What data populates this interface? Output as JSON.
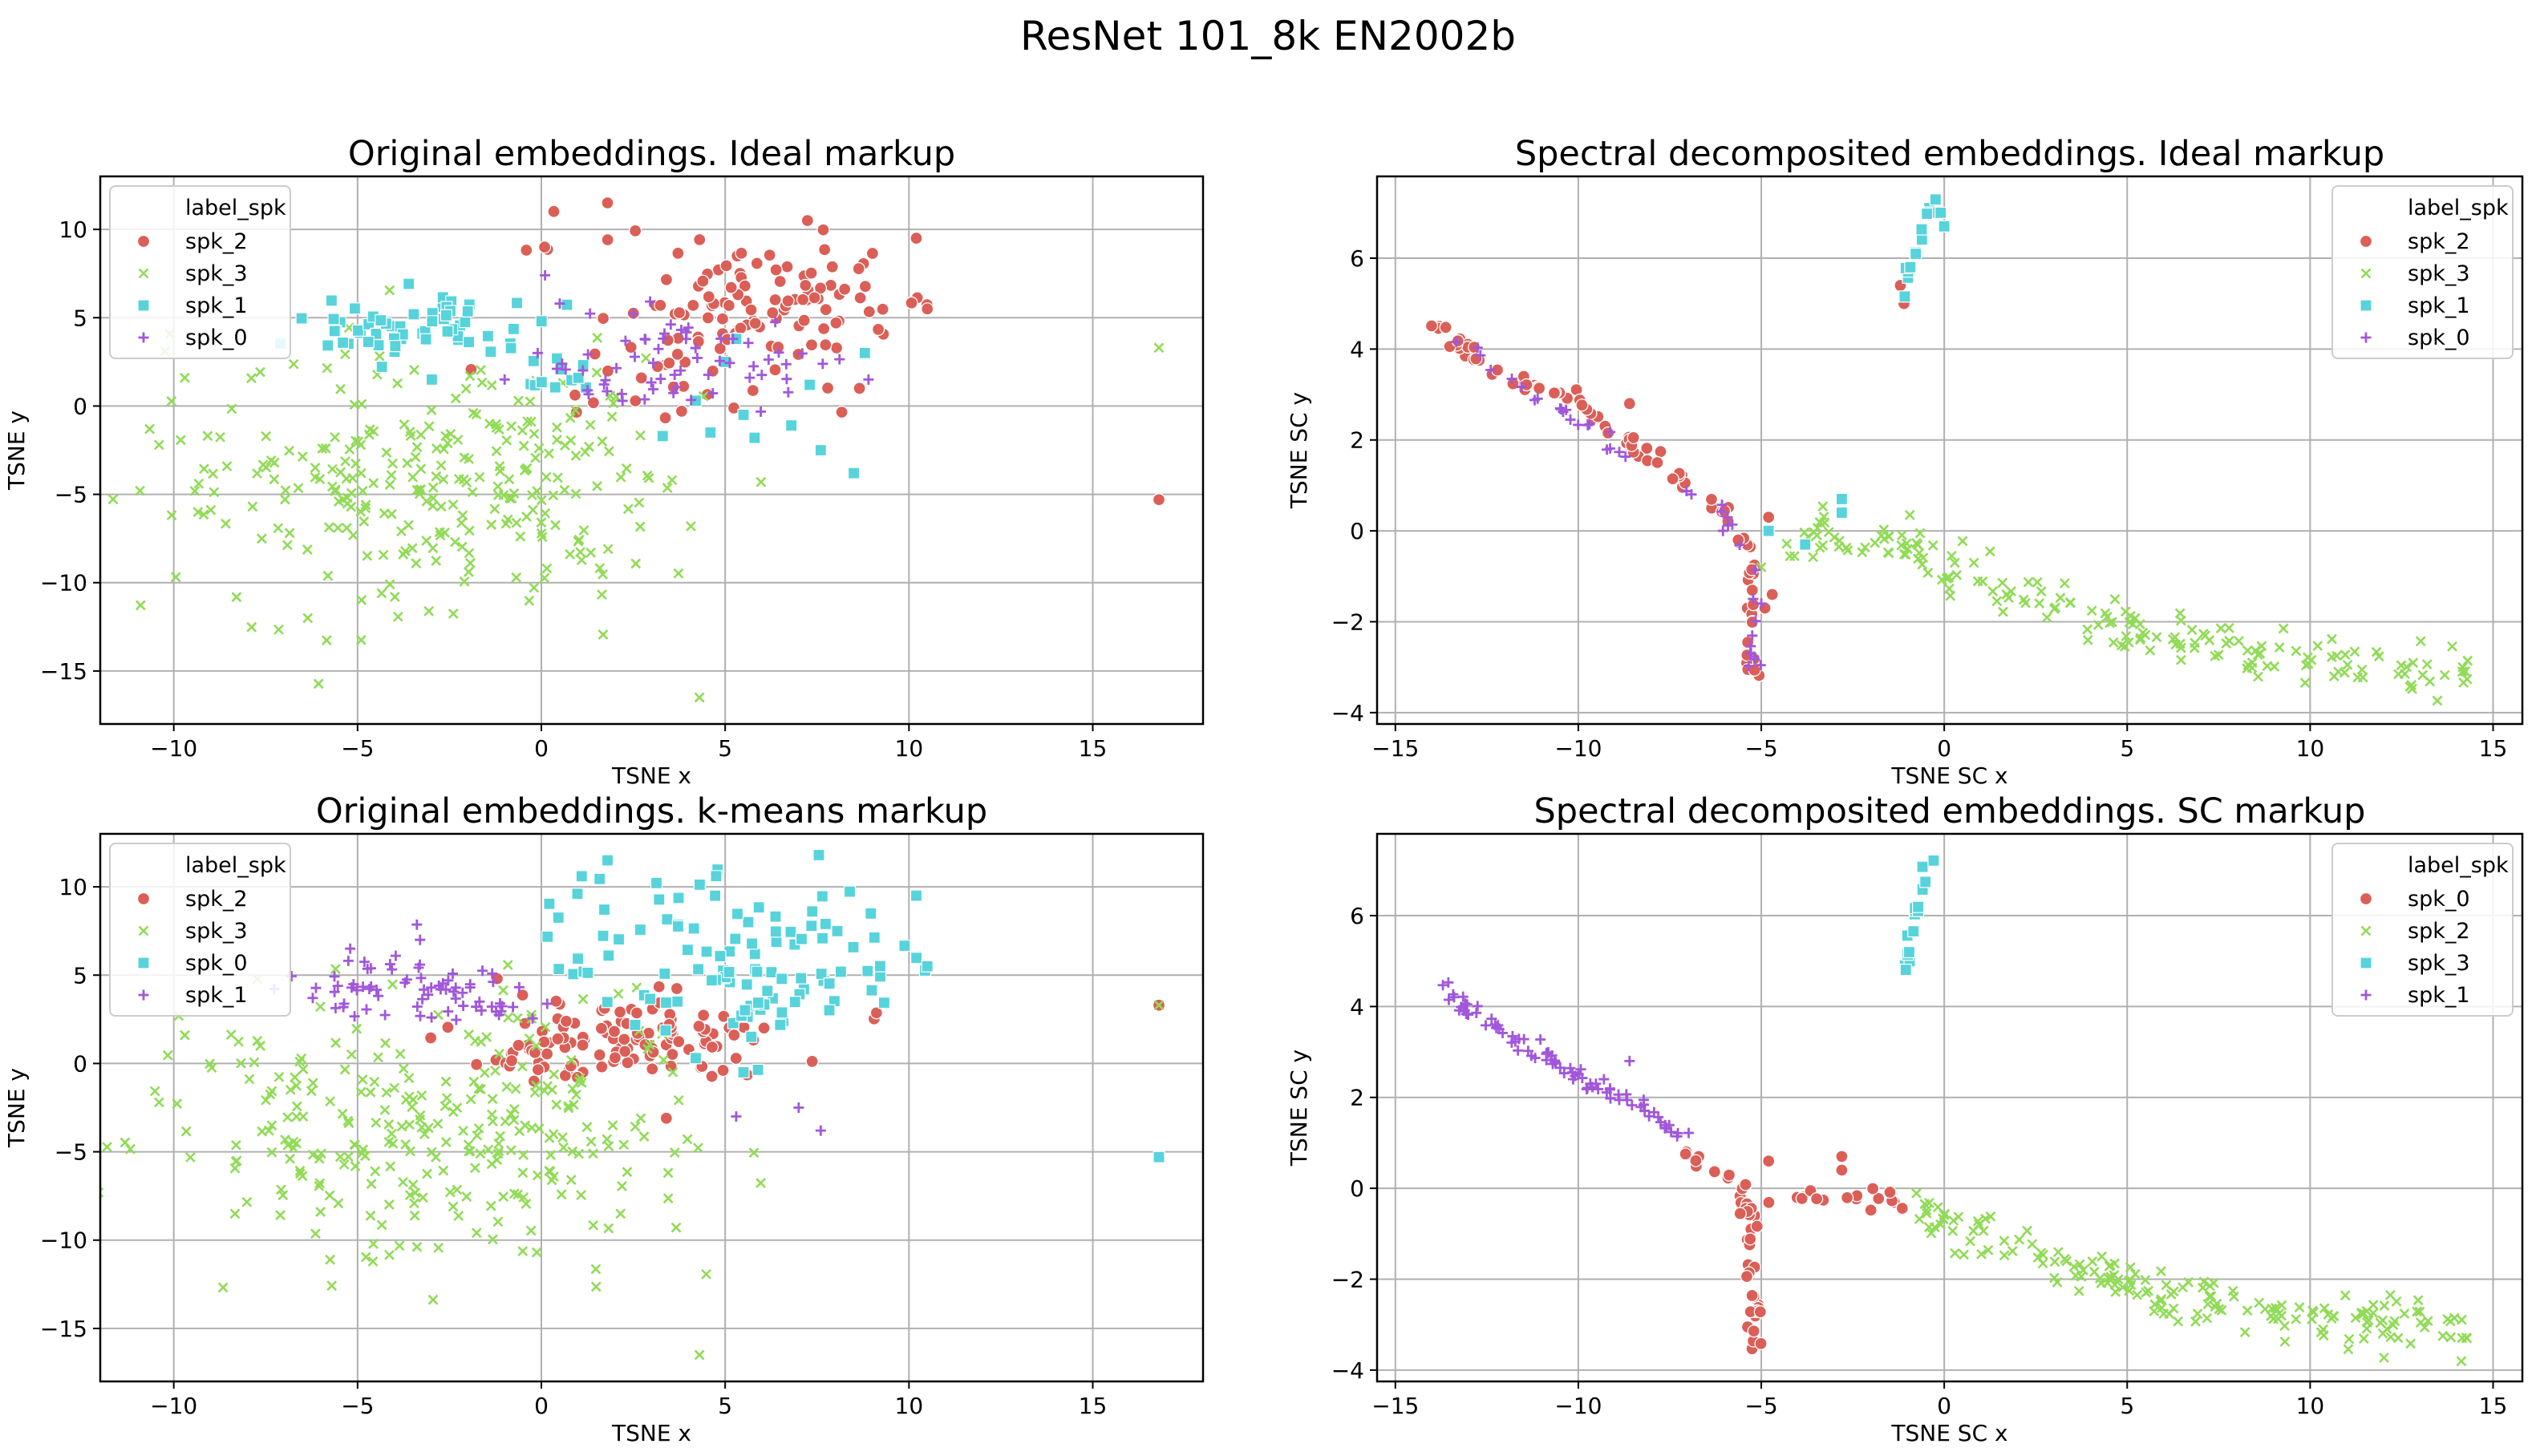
{
  "figure": {
    "title": "ResNet 101_8k EN2002b"
  },
  "colors": {
    "red": "#db5f57",
    "green": "#91db57",
    "cyan": "#57d3db",
    "purple": "#a157db"
  },
  "chart_data": [
    {
      "type": "scatter",
      "title": "Original embeddings. Ideal markup",
      "xlabel": "TSNE x",
      "ylabel": "TSNE y",
      "xlim": [
        -12,
        18
      ],
      "ylim": [
        -18,
        13
      ],
      "xticks": [
        -10,
        -5,
        0,
        5,
        10,
        15
      ],
      "xtick_labels": [
        "−10",
        "−5",
        "0",
        "5",
        "10",
        "15"
      ],
      "yticks": [
        -15,
        -10,
        -5,
        0,
        5,
        10
      ],
      "ytick_labels": [
        "−15",
        "−10",
        "−5",
        "0",
        "5",
        "10"
      ],
      "grid": true,
      "legend_position": "top-left",
      "legend_title": "label_spk",
      "series": [
        {
          "name": "spk_2",
          "marker": "circle",
          "color": "#db5f57",
          "clusters": [
            [
              5.8,
              5.4,
              2.2,
              2.0,
              120
            ],
            [
              0.2,
              9.0,
              0.6,
              0.2,
              3
            ],
            [
              2.6,
              1.0,
              1.5,
              0.8,
              10
            ]
          ],
          "points": [
            [
              1.8,
              11.5
            ],
            [
              10.2,
              9.5
            ],
            [
              10.5,
              5.5
            ],
            [
              16.8,
              -5.3
            ]
          ]
        },
        {
          "name": "spk_3",
          "marker": "x",
          "color": "#91db57",
          "clusters": [
            [
              -3.2,
              -4.2,
              3.4,
              3.6,
              260
            ],
            [
              1.2,
              -3.0,
              1.4,
              2.6,
              30
            ]
          ],
          "points": [
            [
              16.8,
              3.3
            ],
            [
              4.3,
              -16.5
            ],
            [
              -9.7,
              1.6
            ],
            [
              -10.4,
              -2.2
            ]
          ]
        },
        {
          "name": "spk_1",
          "marker": "square",
          "color": "#57d3db",
          "clusters": [
            [
              -3.5,
              4.2,
              1.6,
              1.1,
              65
            ],
            [
              0.6,
              1.5,
              0.6,
              0.6,
              10
            ]
          ],
          "points": [
            [
              4.2,
              0.3
            ],
            [
              5.5,
              -0.5
            ],
            [
              5.3,
              3.8
            ],
            [
              8.8,
              3.0
            ],
            [
              7.3,
              1.2
            ],
            [
              5.0,
              2.5
            ],
            [
              4.6,
              -1.5
            ],
            [
              5.8,
              -1.8
            ],
            [
              6.8,
              -1.1
            ],
            [
              7.6,
              -2.5
            ],
            [
              8.5,
              -3.8
            ],
            [
              3.3,
              -1.7
            ]
          ]
        },
        {
          "name": "spk_0",
          "marker": "plus",
          "color": "#a157db",
          "clusters": [
            [
              2.6,
              2.4,
              1.6,
              1.5,
              40
            ],
            [
              5.5,
              3.0,
              2.0,
              1.7,
              20
            ]
          ],
          "points": [
            [
              0.1,
              7.4
            ],
            [
              -0.1,
              3.0
            ],
            [
              -1.0,
              1.5
            ],
            [
              8.9,
              1.5
            ],
            [
              0.5,
              5.8
            ]
          ]
        }
      ]
    },
    {
      "type": "scatter",
      "title": "Spectral decomposited embeddings. Ideal markup",
      "xlabel": "TSNE SC x",
      "ylabel": "TSNE SC y",
      "xlim": [
        -15.5,
        15.8
      ],
      "ylim": [
        -4.25,
        7.8
      ],
      "xticks": [
        -15,
        -10,
        -5,
        0,
        5,
        10,
        15
      ],
      "xtick_labels": [
        "−15",
        "−10",
        "−5",
        "0",
        "5",
        "10",
        "15"
      ],
      "yticks": [
        -4,
        -2,
        0,
        2,
        4,
        6
      ],
      "ytick_labels": [
        "−4",
        "−2",
        "0",
        "2",
        "4",
        "6"
      ],
      "grid": true,
      "legend_position": "top-right",
      "legend_title": "label_spk",
      "series": [
        {
          "name": "spk_2",
          "marker": "circle",
          "color": "#db5f57",
          "paths": [
            [
              [
                -14.0,
                4.6
              ],
              [
                -12.0,
                3.4
              ],
              [
                -10.0,
                2.9
              ],
              [
                -8.0,
                1.6
              ],
              [
                -6.0,
                0.5
              ],
              [
                -5.3,
                -0.5
              ]
            ],
            [
              [
                -5.3,
                -0.5
              ],
              [
                -5.2,
                -3.3
              ]
            ]
          ],
          "path_counts": [
            75,
            18
          ],
          "jitter": 0.1,
          "points": [
            [
              -8.6,
              2.8
            ],
            [
              -4.8,
              0.3
            ],
            [
              -4.7,
              -1.4
            ],
            [
              -4.9,
              -1.7
            ],
            [
              -1.2,
              5.4
            ],
            [
              -1.1,
              5.0
            ]
          ]
        },
        {
          "name": "spk_3",
          "marker": "x",
          "color": "#91db57",
          "paths": [
            [
              [
                -4.5,
                -0.2
              ],
              [
                -2.5,
                -0.1
              ],
              [
                0.0,
                -0.7
              ],
              [
                5.0,
                -2.2
              ],
              [
                10.0,
                -2.8
              ],
              [
                14.5,
                -3.2
              ]
            ]
          ],
          "path_counts": [
            185
          ],
          "jitter": 0.28,
          "points": [
            [
              -5.0,
              -0.8
            ]
          ]
        },
        {
          "name": "spk_1",
          "marker": "square",
          "color": "#57d3db",
          "paths": [
            [
              [
                -0.3,
                7.3
              ],
              [
                -0.8,
                6.0
              ],
              [
                -1.1,
                4.8
              ]
            ]
          ],
          "path_counts": [
            14
          ],
          "jitter": 0.08,
          "points": [
            [
              -2.8,
              0.7
            ],
            [
              -2.8,
              0.4
            ],
            [
              -4.8,
              0.0
            ],
            [
              -3.8,
              -0.3
            ],
            [
              0.0,
              6.7
            ],
            [
              -0.1,
              7.0
            ]
          ]
        },
        {
          "name": "spk_0",
          "marker": "plus",
          "color": "#a157db",
          "paths": [
            [
              [
                -13.3,
                4.1
              ],
              [
                -9.0,
                1.9
              ],
              [
                -6.0,
                0.4
              ],
              [
                -5.3,
                -0.8
              ]
            ],
            [
              [
                -5.3,
                -0.8
              ],
              [
                -5.2,
                -3.0
              ]
            ]
          ],
          "path_counts": [
            30,
            10
          ],
          "jitter": 0.12,
          "points": [
            [
              -5.0,
              -1.6
            ],
            [
              -5.3,
              -2.7
            ]
          ]
        }
      ]
    },
    {
      "type": "scatter",
      "title": "Original embeddings. k-means markup",
      "xlabel": "TSNE x",
      "ylabel": "TSNE y",
      "xlim": [
        -12,
        18
      ],
      "ylim": [
        -18,
        13
      ],
      "xticks": [
        -10,
        -5,
        0,
        5,
        10,
        15
      ],
      "xtick_labels": [
        "−10",
        "−5",
        "0",
        "5",
        "10",
        "15"
      ],
      "yticks": [
        -15,
        -10,
        -5,
        0,
        5,
        10
      ],
      "ytick_labels": [
        "−15",
        "−10",
        "−5",
        "0",
        "5",
        "10"
      ],
      "grid": true,
      "legend_position": "top-left",
      "legend_title": "label_spk",
      "series": [
        {
          "name": "spk_2",
          "marker": "circle",
          "color": "#db5f57",
          "clusters": [
            [
              2.3,
              1.3,
              1.9,
              1.1,
              110
            ],
            [
              -0.6,
              0.2,
              0.5,
              0.4,
              10
            ]
          ],
          "points": [
            [
              -1.2,
              4.8
            ],
            [
              16.8,
              3.3
            ],
            [
              3.4,
              -3.1
            ],
            [
              -0.2,
              -1.0
            ]
          ]
        },
        {
          "name": "spk_3",
          "marker": "x",
          "color": "#91db57",
          "clusters": [
            [
              -3.2,
              -4.2,
              3.4,
              3.6,
              260
            ],
            [
              1.2,
              -3.0,
              1.4,
              2.6,
              30
            ]
          ],
          "points": [
            [
              16.8,
              3.3
            ],
            [
              4.3,
              -16.5
            ],
            [
              -9.7,
              1.6
            ],
            [
              -10.4,
              -2.2
            ]
          ]
        },
        {
          "name": "spk_0",
          "marker": "square",
          "color": "#57d3db",
          "clusters": [
            [
              6.0,
              6.0,
              2.2,
              2.2,
              95
            ],
            [
              2.0,
              7.3,
              1.0,
              2.2,
              15
            ]
          ],
          "points": [
            [
              1.8,
              11.5
            ],
            [
              10.2,
              9.5
            ],
            [
              10.5,
              5.5
            ],
            [
              16.8,
              -5.3
            ],
            [
              5.5,
              -0.5
            ],
            [
              4.2,
              0.3
            ]
          ]
        },
        {
          "name": "spk_1",
          "marker": "plus",
          "color": "#a157db",
          "clusters": [
            [
              -3.8,
              4.4,
              1.8,
              1.0,
              60
            ],
            [
              -1.0,
              3.0,
              0.8,
              0.6,
              12
            ]
          ],
          "points": [
            [
              -5.2,
              6.5
            ],
            [
              -3.3,
              7.0
            ],
            [
              5.3,
              -3.0
            ],
            [
              7.0,
              -2.5
            ],
            [
              7.6,
              -3.8
            ]
          ]
        }
      ]
    },
    {
      "type": "scatter",
      "title": "Spectral decomposited embeddings. SC markup",
      "xlabel": "TSNE SC x",
      "ylabel": "TSNE SC y",
      "xlim": [
        -15.5,
        15.8
      ],
      "ylim": [
        -4.25,
        7.8
      ],
      "xticks": [
        -15,
        -10,
        -5,
        0,
        5,
        10,
        15
      ],
      "xtick_labels": [
        "−15",
        "−10",
        "−5",
        "0",
        "5",
        "10",
        "15"
      ],
      "yticks": [
        -4,
        -2,
        0,
        2,
        4,
        6
      ],
      "ytick_labels": [
        "−4",
        "−2",
        "0",
        "2",
        "4",
        "6"
      ],
      "grid": true,
      "legend_position": "top-right",
      "legend_title": "label_spk",
      "series": [
        {
          "name": "spk_0",
          "marker": "circle",
          "color": "#db5f57",
          "paths": [
            [
              [
                -7.0,
                0.8
              ],
              [
                -5.5,
                0.0
              ],
              [
                -5.3,
                -0.6
              ],
              [
                -5.2,
                -3.4
              ]
            ],
            [
              [
                -4.8,
                -0.3
              ],
              [
                -3.5,
                -0.1
              ],
              [
                -2.0,
                -0.2
              ],
              [
                -1.0,
                -0.4
              ]
            ]
          ],
          "path_counts": [
            45,
            18
          ],
          "jitter": 0.1,
          "points": [
            [
              -2.8,
              0.7
            ],
            [
              -2.8,
              0.4
            ],
            [
              -4.8,
              0.6
            ]
          ]
        },
        {
          "name": "spk_2",
          "marker": "x",
          "color": "#91db57",
          "paths": [
            [
              [
                -0.8,
                -0.3
              ],
              [
                0.0,
                -0.7
              ],
              [
                5.0,
                -2.2
              ],
              [
                10.0,
                -2.8
              ],
              [
                14.5,
                -3.2
              ]
            ]
          ],
          "path_counts": [
            180
          ],
          "jitter": 0.28,
          "points": []
        },
        {
          "name": "spk_3",
          "marker": "square",
          "color": "#57d3db",
          "paths": [
            [
              [
                -0.3,
                7.3
              ],
              [
                -0.8,
                6.0
              ],
              [
                -1.1,
                4.8
              ]
            ]
          ],
          "path_counts": [
            18
          ],
          "jitter": 0.08,
          "points": []
        },
        {
          "name": "spk_1",
          "marker": "plus",
          "color": "#a157db",
          "paths": [
            [
              [
                -14.0,
                4.6
              ],
              [
                -12.0,
                3.4
              ],
              [
                -10.0,
                2.5
              ],
              [
                -8.0,
                1.6
              ],
              [
                -7.0,
                1.0
              ]
            ]
          ],
          "path_counts": [
            85
          ],
          "jitter": 0.11,
          "points": [
            [
              -8.6,
              2.8
            ],
            [
              -9.3,
              2.4
            ]
          ]
        }
      ]
    }
  ]
}
